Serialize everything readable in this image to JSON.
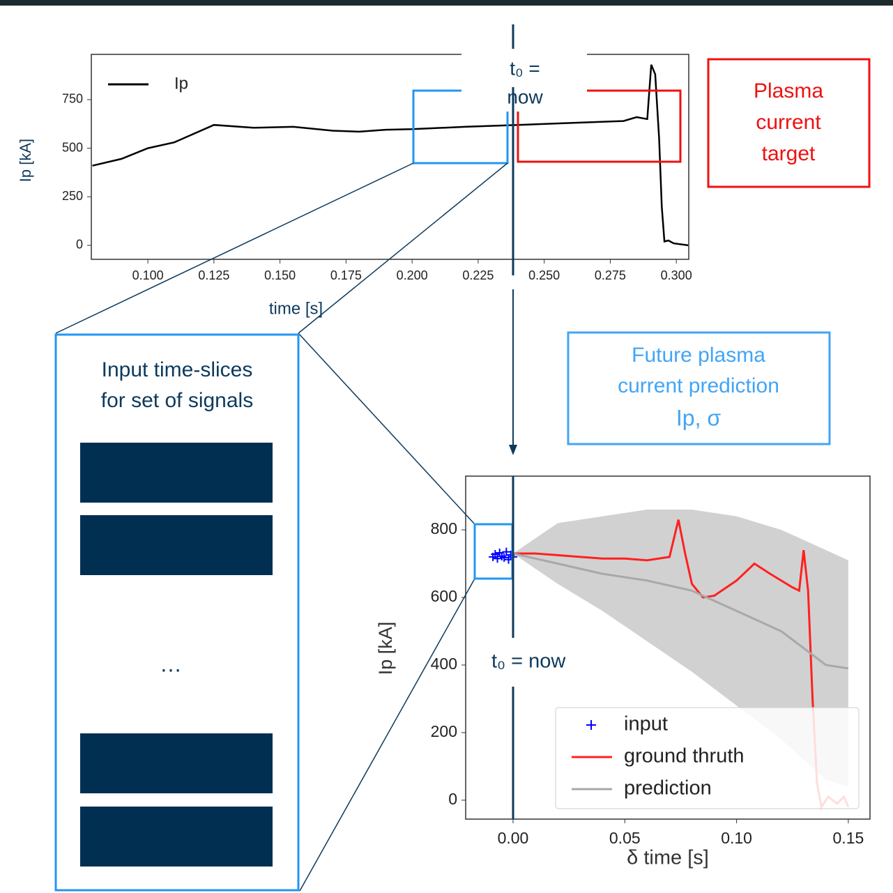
{
  "chart_data": [
    {
      "type": "line",
      "x": [
        0.079,
        0.09,
        0.1,
        0.11,
        0.125,
        0.14,
        0.155,
        0.17,
        0.18,
        0.19,
        0.2,
        0.22,
        0.24,
        0.26,
        0.28,
        0.285,
        0.289,
        0.2905,
        0.292,
        0.2935,
        0.2945,
        0.2955,
        0.297,
        0.299,
        0.3045
      ],
      "series": [
        {
          "name": "Ip",
          "color": "#000000",
          "values": [
            410,
            445,
            500,
            530,
            620,
            605,
            610,
            590,
            585,
            595,
            598,
            610,
            620,
            630,
            640,
            660,
            650,
            930,
            880,
            550,
            200,
            20,
            25,
            10,
            0
          ]
        }
      ],
      "xlim": [
        0.0786,
        0.3047
      ],
      "ylim": [
        -72,
        983
      ],
      "xticks": [
        {
          "value": 0.1,
          "label": "0.100"
        },
        {
          "value": 0.125,
          "label": "0.125"
        },
        {
          "value": 0.15,
          "label": "0.150"
        },
        {
          "value": 0.175,
          "label": "0.175"
        },
        {
          "value": 0.2,
          "label": "0.200"
        },
        {
          "value": 0.225,
          "label": "0.225"
        },
        {
          "value": 0.25,
          "label": "0.250"
        },
        {
          "value": 0.275,
          "label": "0.275"
        },
        {
          "value": 0.3,
          "label": "0.300"
        }
      ],
      "yticks": [
        0,
        250,
        500,
        750
      ],
      "x_label": "time [s]",
      "y_label": "Ip [kA]",
      "legend": "upper left",
      "label_color": "#0d3a5c"
    },
    {
      "type": "line",
      "band": {
        "color": "#cccccc",
        "x": [
          0,
          0.02,
          0.04,
          0.06,
          0.08,
          0.1,
          0.12,
          0.14,
          0.15
        ],
        "upper": [
          730,
          820,
          840,
          860,
          860,
          840,
          800,
          740,
          710
        ],
        "lower": [
          730,
          640,
          560,
          470,
          380,
          280,
          180,
          60,
          40
        ]
      },
      "series": [
        {
          "name": "input",
          "color": "#0000ff",
          "marker": "+",
          "x": [
            -0.009,
            -0.008,
            -0.007,
            -0.006,
            -0.005,
            -0.004,
            -0.003,
            -0.002,
            -0.001,
            0
          ],
          "values": [
            720,
            728,
            715,
            732,
            722,
            718,
            735,
            712,
            726,
            720
          ]
        },
        {
          "name": "ground thruth",
          "color": "#ff2020",
          "x": [
            0,
            0.01,
            0.02,
            0.03,
            0.04,
            0.05,
            0.06,
            0.07,
            0.074,
            0.077,
            0.08,
            0.085,
            0.09,
            0.1,
            0.108,
            0.115,
            0.125,
            0.128,
            0.13,
            0.132,
            0.134,
            0.136,
            0.138,
            0.141,
            0.145,
            0.148,
            0.15
          ],
          "values": [
            730,
            730,
            725,
            720,
            715,
            715,
            710,
            720,
            830,
            730,
            640,
            600,
            605,
            650,
            700,
            670,
            630,
            620,
            740,
            620,
            300,
            50,
            -20,
            10,
            -10,
            10,
            -20
          ]
        },
        {
          "name": "prediction",
          "color": "#a8a8a8",
          "x": [
            0,
            0.02,
            0.04,
            0.06,
            0.08,
            0.1,
            0.12,
            0.13,
            0.14,
            0.15
          ],
          "values": [
            730,
            700,
            670,
            650,
            620,
            560,
            500,
            450,
            400,
            390
          ]
        }
      ],
      "xlim": [
        -0.0212,
        0.1597
      ],
      "ylim": [
        -56,
        959
      ],
      "xticks": [
        {
          "value": 0,
          "label": "0.00"
        },
        {
          "value": 0.05,
          "label": "0.05"
        },
        {
          "value": 0.1,
          "label": "0.10"
        },
        {
          "value": 0.15,
          "label": "0.15"
        }
      ],
      "yticks": [
        0,
        200,
        400,
        600,
        800
      ],
      "x_label": "δ time [s]",
      "y_label": "Ip [kA]",
      "legend": "lower right",
      "label_color": "#333333",
      "annotation": "t₀ = now"
    }
  ],
  "t0_label": [
    "t₀ =",
    "now"
  ],
  "target_box": [
    "Plasma",
    "current",
    "target"
  ],
  "prediction_box": [
    "Future plasma",
    "current prediction",
    "Ip, σ"
  ],
  "input_box": {
    "title": [
      "Input time-slices",
      "for set of signals"
    ],
    "ellipsis": "…"
  }
}
